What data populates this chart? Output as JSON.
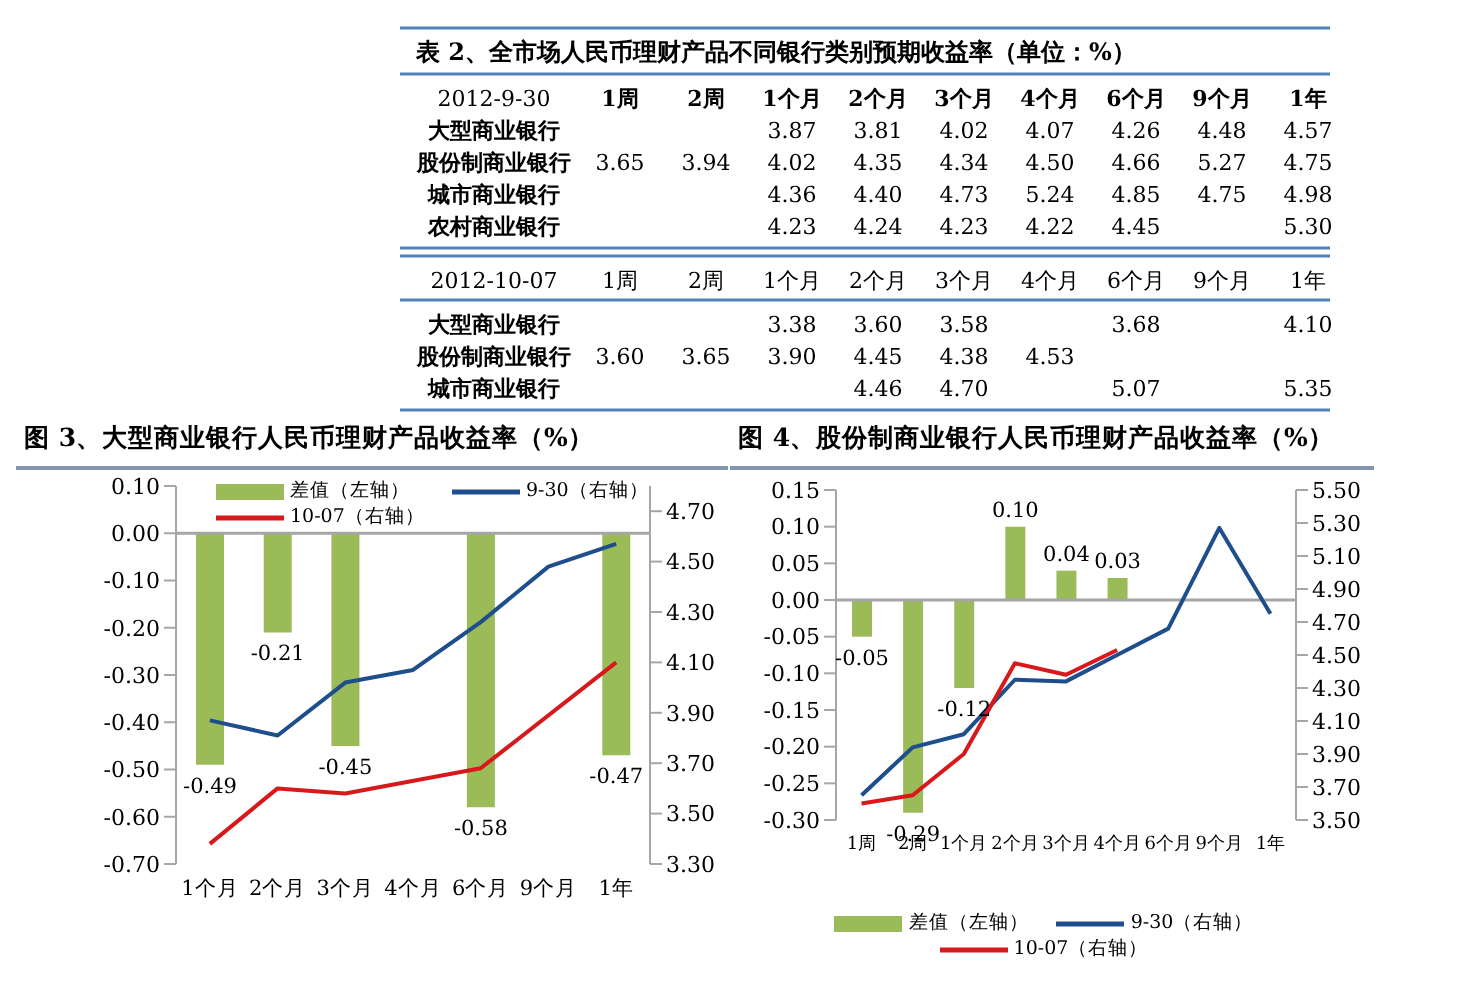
{
  "chart_data": [
    {
      "type": "heatmap",
      "title": "表 2、全市场人民币理财产品不同银行类别预期收益率（单位：%）",
      "ylabel": "2012-9-30",
      "data_labels": true,
      "categories": [
        "1周",
        "2周",
        "1个月",
        "2个月",
        "3个月",
        "4个月",
        "6个月",
        "9个月",
        "1年"
      ],
      "y_categories": [
        "大型商业银行",
        "股份制商业银行",
        "城市商业银行",
        "农村商业银行"
      ],
      "cells": [
        [
          null,
          null,
          3.87,
          3.81,
          4.02,
          4.07,
          4.26,
          4.48,
          4.57
        ],
        [
          3.65,
          3.94,
          4.02,
          4.35,
          4.34,
          4.5,
          4.66,
          5.27,
          4.75
        ],
        [
          null,
          null,
          4.36,
          4.4,
          4.73,
          5.24,
          4.85,
          4.75,
          4.98
        ],
        [
          null,
          null,
          4.23,
          4.24,
          4.23,
          4.22,
          4.45,
          null,
          5.3
        ]
      ],
      "cell_labels": [
        [
          null,
          null,
          "3.87",
          "3.81",
          "4.02",
          "4.07",
          "4.26",
          "4.48",
          "4.57"
        ],
        [
          "3.65",
          "3.94",
          "4.02",
          "4.35",
          "4.34",
          "4.50",
          "4.66",
          "5.27",
          "4.75"
        ],
        [
          null,
          null,
          "4.36",
          "4.40",
          "4.73",
          "5.24",
          "4.85",
          "4.75",
          "4.98"
        ],
        [
          null,
          null,
          "4.23",
          "4.24",
          "4.23",
          "4.22",
          "4.45",
          null,
          "5.30"
        ]
      ]
    },
    {
      "type": "heatmap",
      "ylabel": "2012-10-07",
      "data_labels": true,
      "categories": [
        "1周",
        "2周",
        "1个月",
        "2个月",
        "3个月",
        "4个月",
        "6个月",
        "9个月",
        "1年"
      ],
      "y_categories": [
        "大型商业银行",
        "股份制商业银行",
        "城市商业银行"
      ],
      "cells": [
        [
          null,
          null,
          3.38,
          3.6,
          3.58,
          null,
          3.68,
          null,
          4.1
        ],
        [
          3.6,
          3.65,
          3.9,
          4.45,
          4.38,
          4.53,
          null,
          null,
          null
        ],
        [
          null,
          null,
          null,
          4.46,
          4.7,
          null,
          5.07,
          null,
          5.35
        ]
      ],
      "cell_labels": [
        [
          null,
          null,
          "3.38",
          "3.60",
          "3.58",
          null,
          "3.68",
          null,
          "4.10"
        ],
        [
          "3.60",
          "3.65",
          "3.90",
          "4.45",
          "4.38",
          "4.53",
          null,
          null,
          null
        ],
        [
          null,
          null,
          null,
          "4.46",
          "4.70",
          null,
          "5.07",
          null,
          "5.35"
        ]
      ]
    },
    {
      "type": "bar",
      "title": "图 3、大型商业银行人民币理财产品收益率（%）",
      "legend": "top",
      "marker": "none",
      "categories": [
        "1个月",
        "2个月",
        "3个月",
        "4个月",
        "6个月",
        "9个月",
        "1年"
      ],
      "series": [
        {
          "name": "差值（左轴）",
          "type": "bar",
          "color": "#9bbb59",
          "values": [
            -0.49,
            -0.21,
            -0.45,
            null,
            -0.58,
            null,
            -0.47
          ],
          "value_labels": [
            "-0.49",
            "-0.21",
            "-0.45",
            null,
            "-0.58",
            null,
            "-0.47"
          ]
        },
        {
          "name": "9-30（右轴）",
          "type": "line",
          "axis": "y2",
          "color": "#1f4e8c",
          "values": [
            3.87,
            3.81,
            4.02,
            4.07,
            4.26,
            4.48,
            4.57
          ]
        },
        {
          "name": "10-07（右轴）",
          "type": "line",
          "axis": "y2",
          "color": "#d7191c",
          "values": [
            3.38,
            3.6,
            3.58,
            null,
            3.68,
            null,
            4.1
          ]
        }
      ],
      "ylim": [
        -0.7,
        0.1
      ],
      "yticks": [
        {
          "value": -0.7,
          "label": "-0.70"
        },
        {
          "value": -0.6,
          "label": "-0.60"
        },
        {
          "value": -0.5,
          "label": "-0.50"
        },
        {
          "value": -0.4,
          "label": "-0.40"
        },
        {
          "value": -0.3,
          "label": "-0.30"
        },
        {
          "value": -0.2,
          "label": "-0.20"
        },
        {
          "value": -0.1,
          "label": "-0.10"
        },
        {
          "value": 0,
          "label": "0.00"
        },
        {
          "value": 0.1,
          "label": "0.10"
        }
      ],
      "y2lim": [
        3.3,
        4.8
      ],
      "y2ticks": [
        {
          "value": 3.3,
          "label": "3.30"
        },
        {
          "value": 3.5,
          "label": "3.50"
        },
        {
          "value": 3.7,
          "label": "3.70"
        },
        {
          "value": 3.9,
          "label": "3.90"
        },
        {
          "value": 4.1,
          "label": "4.10"
        },
        {
          "value": 4.3,
          "label": "4.30"
        },
        {
          "value": 4.5,
          "label": "4.50"
        },
        {
          "value": 4.7,
          "label": "4.70"
        }
      ],
      "ref_lines": [
        {
          "axis": "y",
          "value": 0,
          "color": "#a6a6a6"
        }
      ]
    },
    {
      "type": "bar",
      "title": "图 4、股份制商业银行人民币理财产品收益率（%）",
      "legend": "bottom",
      "marker": "none",
      "categories": [
        "1周",
        "2周",
        "1个月",
        "2个月",
        "3个月",
        "4个月",
        "6个月",
        "9个月",
        "1年"
      ],
      "series": [
        {
          "name": "差值（左轴）",
          "type": "bar",
          "color": "#9bbb59",
          "values": [
            -0.05,
            -0.29,
            -0.12,
            0.1,
            0.04,
            0.03,
            null,
            null,
            null
          ],
          "value_labels": [
            "-0.05",
            "-0.29",
            "-0.12",
            "0.10",
            "0.04",
            "0.03",
            null,
            null,
            null
          ]
        },
        {
          "name": "9-30（右轴）",
          "type": "line",
          "axis": "y2",
          "color": "#1f4e8c",
          "values": [
            3.65,
            3.94,
            4.02,
            4.35,
            4.34,
            4.5,
            4.66,
            5.27,
            4.75
          ]
        },
        {
          "name": "10-07（右轴）",
          "type": "line",
          "axis": "y2",
          "color": "#d7191c",
          "values": [
            3.6,
            3.65,
            3.9,
            4.45,
            4.38,
            4.53,
            null,
            null,
            null
          ]
        }
      ],
      "ylim": [
        -0.3,
        0.15
      ],
      "yticks": [
        {
          "value": -0.3,
          "label": "-0.30"
        },
        {
          "value": -0.25,
          "label": "-0.25"
        },
        {
          "value": -0.2,
          "label": "-0.20"
        },
        {
          "value": -0.15,
          "label": "-0.15"
        },
        {
          "value": -0.1,
          "label": "-0.10"
        },
        {
          "value": -0.05,
          "label": "-0.05"
        },
        {
          "value": 0,
          "label": "0.00"
        },
        {
          "value": 0.05,
          "label": "0.05"
        },
        {
          "value": 0.1,
          "label": "0.10"
        },
        {
          "value": 0.15,
          "label": "0.15"
        }
      ],
      "y2lim": [
        3.5,
        5.5
      ],
      "y2ticks": [
        {
          "value": 3.5,
          "label": "3.50"
        },
        {
          "value": 3.7,
          "label": "3.70"
        },
        {
          "value": 3.9,
          "label": "3.90"
        },
        {
          "value": 4.1,
          "label": "4.10"
        },
        {
          "value": 4.3,
          "label": "4.30"
        },
        {
          "value": 4.5,
          "label": "4.50"
        },
        {
          "value": 4.7,
          "label": "4.70"
        },
        {
          "value": 4.9,
          "label": "4.90"
        },
        {
          "value": 5.1,
          "label": "5.10"
        },
        {
          "value": 5.3,
          "label": "5.30"
        },
        {
          "value": 5.5,
          "label": "5.50"
        }
      ],
      "ref_lines": [
        {
          "axis": "y",
          "value": 0,
          "color": "#a6a6a6"
        }
      ]
    }
  ]
}
